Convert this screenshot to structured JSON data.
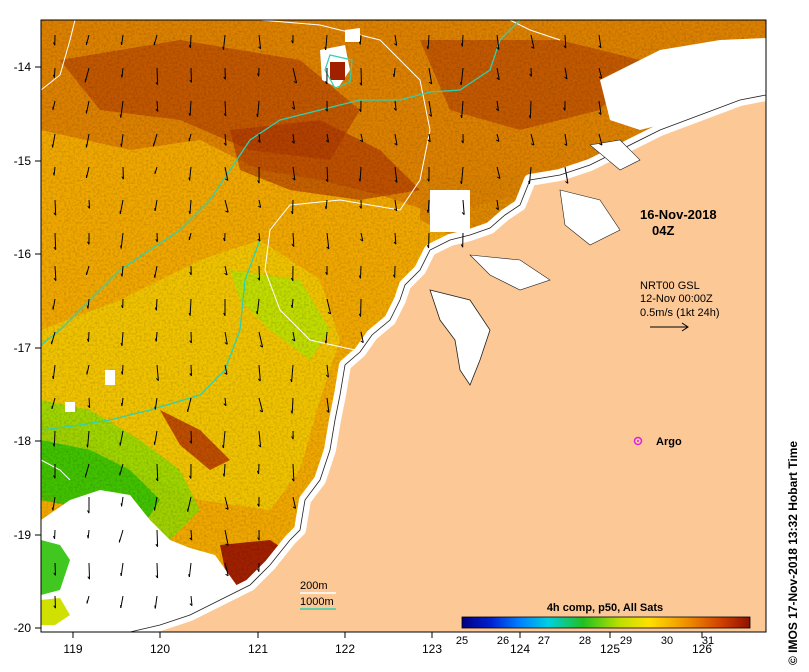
{
  "map": {
    "lat_ticks": [
      "-14",
      "-15",
      "-16",
      "-17",
      "-18",
      "-19",
      "-20"
    ],
    "lon_ticks": [
      "119",
      "120",
      "121",
      "122",
      "123",
      "124",
      "125",
      "126"
    ],
    "datetime_line1": "16-Nov-2018",
    "datetime_line2": "04Z",
    "current_source": "NRT00 GSL",
    "current_time": "12-Nov 00:00Z",
    "current_scale": "0.5m/s (1kt 24h)",
    "argo_label": "Argo",
    "contour_200m": "200m",
    "contour_1000m": "1000m",
    "credit": "© IMOS 17-Nov-2018 13:32 Hobart Time"
  },
  "legend": {
    "title": "4h comp, p50, All Sats",
    "ticks": [
      "25",
      "26",
      "27",
      "28",
      "29",
      "30",
      "31"
    ]
  },
  "colors": {
    "land": "#fcc896",
    "hot": "#a02000",
    "warm": "#e08800",
    "mid": "#f0b000",
    "cool": "#c0e000",
    "green": "#30c000",
    "argo": "#e020e0",
    "isobath_200": "#ffffff",
    "isobath_1000": "#30d0b0"
  }
}
